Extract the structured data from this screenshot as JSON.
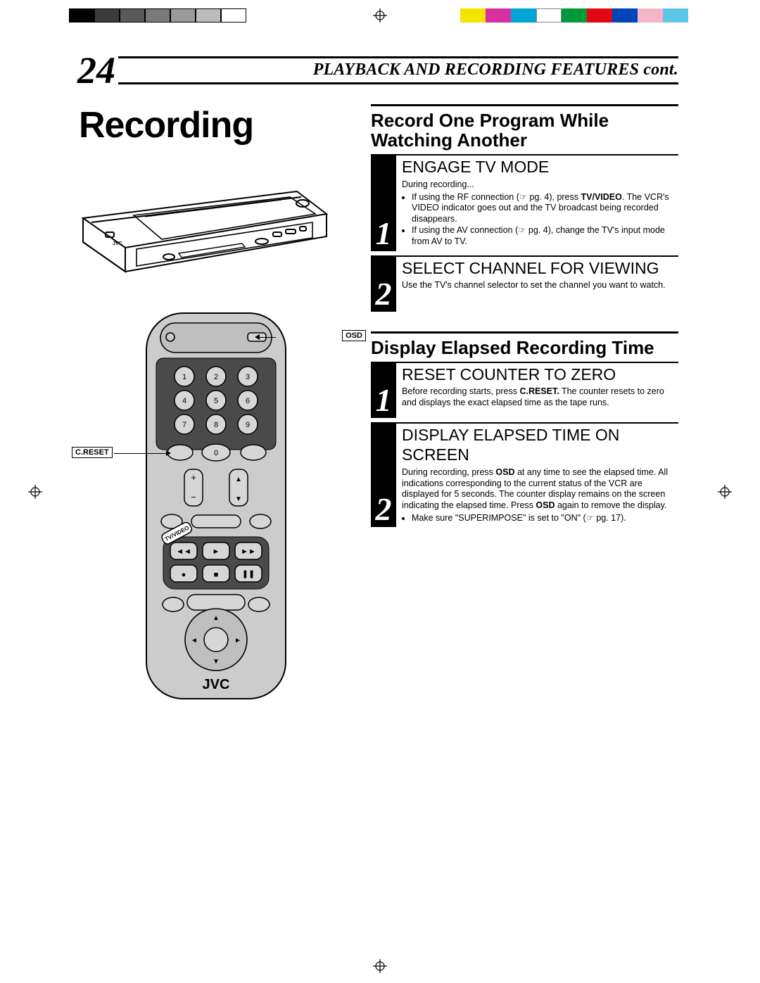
{
  "colorbar_left": [
    "#000000",
    "#3b3b3b",
    "#5a5a5a",
    "#7a7a7a",
    "#9a9a9a",
    "#bcbcbc",
    "#d6d6d6"
  ],
  "colorbar_left_outline": "#000000",
  "colorbar_right": [
    "#f5e400",
    "#d92ea0",
    "#00a6d6",
    "#ffffff",
    "#009a3d",
    "#e30613",
    "#0046b8",
    "#f6b4c7",
    "#5cc6e6"
  ],
  "page_number": "24",
  "header_title": "PLAYBACK AND RECORDING FEATURES cont.",
  "main_title": "Recording",
  "callouts": {
    "osd": "OSD",
    "creset": "C.RESET",
    "tvvideo": "TV/VIDEO"
  },
  "sections": [
    {
      "title": "Record One Program While Watching Another",
      "steps": [
        {
          "num": "1",
          "title": "ENGAGE TV MODE",
          "intro": "During recording...",
          "bullets": [
            "If using the RF connection (☞ pg. 4), press <b>TV/VIDEO</b>. The VCR's VIDEO indicator goes out and the TV broadcast being recorded disappears.",
            "If using the AV connection (☞ pg. 4), change the TV's input mode from AV to TV."
          ]
        },
        {
          "num": "2",
          "title": "SELECT CHANNEL FOR VIEWING",
          "intro": "Use the TV's channel selector to set the channel you want to watch.",
          "bullets": []
        }
      ]
    },
    {
      "title": "Display Elapsed Recording Time",
      "steps": [
        {
          "num": "1",
          "title": "RESET COUNTER TO ZERO",
          "intro": "Before recording starts, press <b>C.RESET.</b> The counter resets to zero and displays the exact elapsed time as the tape runs.",
          "bullets": []
        },
        {
          "num": "2",
          "title": "DISPLAY ELAPSED TIME ON SCREEN",
          "intro": "During recording, press <b>OSD</b> at any time to see the elapsed time. All indications corresponding to the current status of the VCR are displayed for 5 seconds. The counter display remains on the screen indicating the elapsed time. Press <b>OSD</b> again to remove the display.",
          "bullets": [
            "Make sure \"SUPERIMPOSE\" is set to \"ON\" (☞ pg. 17)."
          ]
        }
      ]
    }
  ],
  "remote_brand": "JVC"
}
